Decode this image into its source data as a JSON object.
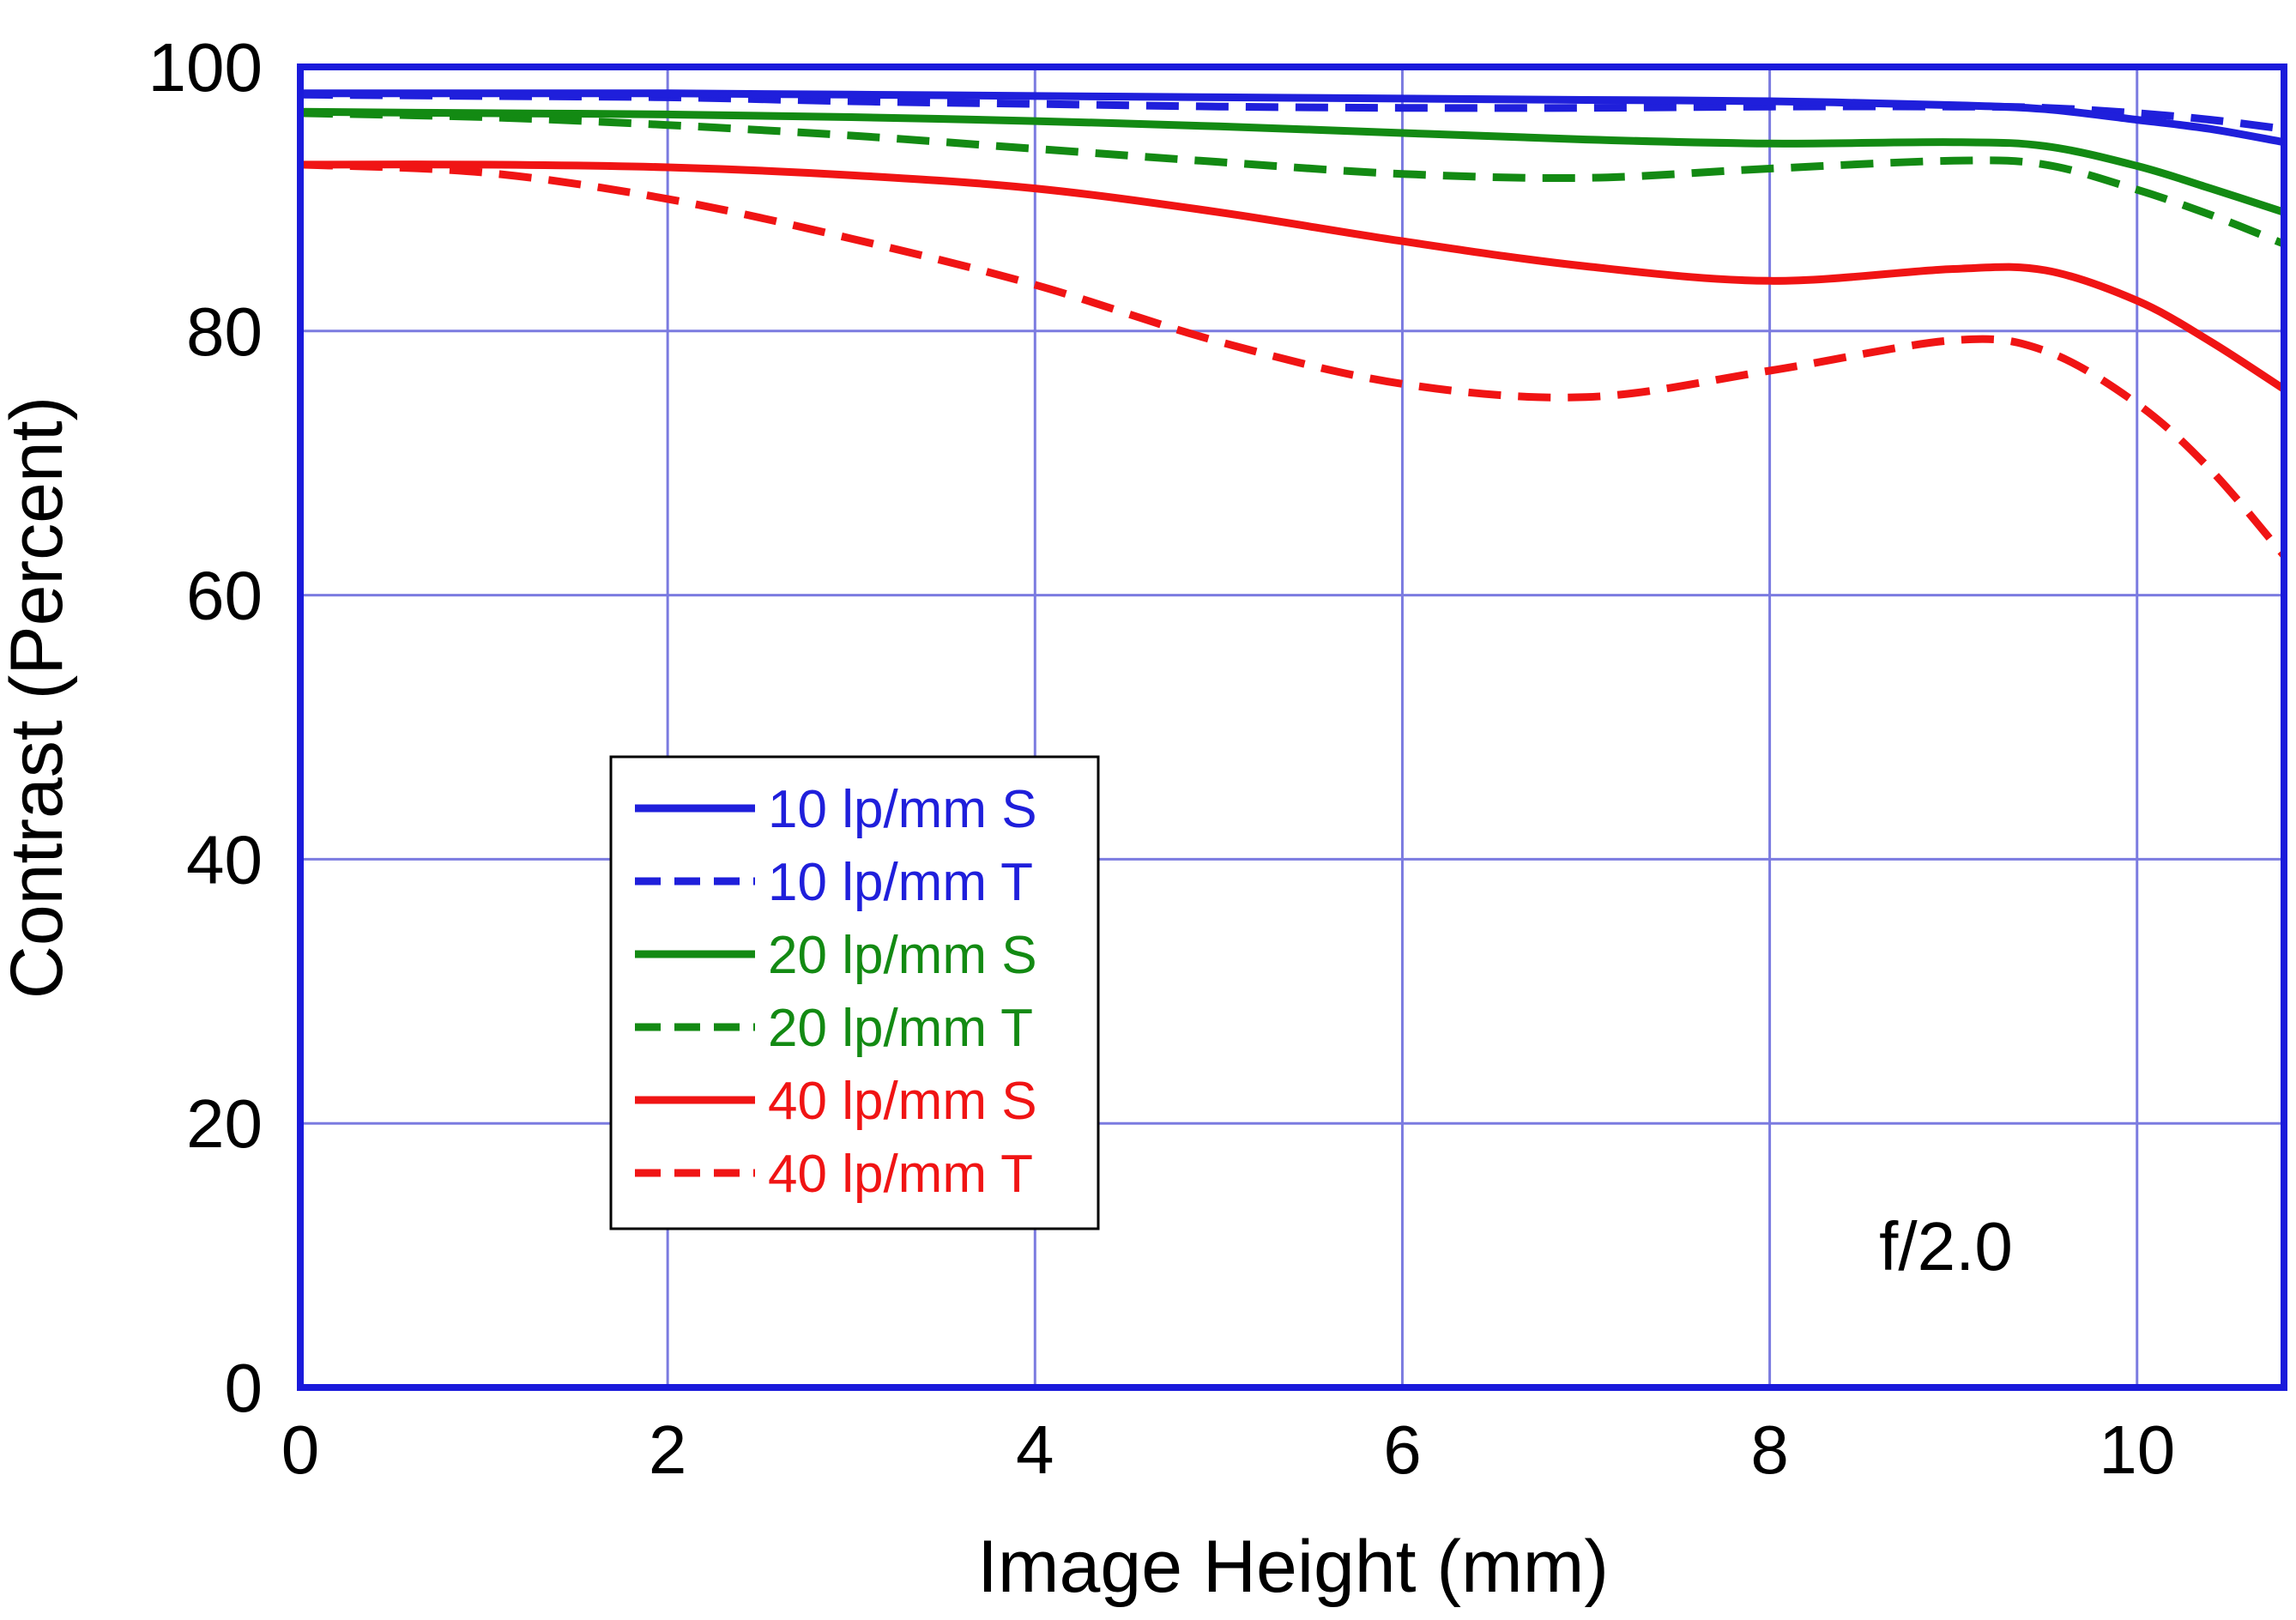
{
  "chart_data": {
    "type": "line",
    "xlabel": "Image Height (mm)",
    "ylabel": "Contrast (Percent)",
    "xlim": [
      0,
      10.8
    ],
    "ylim": [
      0,
      100
    ],
    "x_ticks": [
      0,
      2,
      4,
      6,
      8,
      10
    ],
    "y_ticks": [
      0,
      20,
      40,
      60,
      80,
      100
    ],
    "grid": true,
    "legend_position": "center-left",
    "annotation": "f/2.0",
    "colors": {
      "frame": "#1a1adb",
      "grid": "#7b7be0"
    },
    "series": [
      {
        "name": "10 lp/mm S",
        "color": "#1f1fdb",
        "dash": false,
        "x": [
          0,
          1,
          2,
          3,
          4,
          5,
          6,
          7,
          8,
          9,
          9.5,
          10,
          10.4,
          10.8
        ],
        "y": [
          98.0,
          98.0,
          98.0,
          97.9,
          97.8,
          97.7,
          97.6,
          97.5,
          97.4,
          97.1,
          96.8,
          96.0,
          95.3,
          94.3
        ]
      },
      {
        "name": "10 lp/mm T",
        "color": "#1f1fdb",
        "dash": true,
        "x": [
          0,
          1,
          2,
          3,
          4,
          5,
          6,
          7,
          8,
          9,
          9.5,
          10,
          10.4,
          10.8
        ],
        "y": [
          97.9,
          97.8,
          97.7,
          97.4,
          97.2,
          97.0,
          96.9,
          96.9,
          97.0,
          97.0,
          96.9,
          96.5,
          96.0,
          95.3
        ]
      },
      {
        "name": "20 lp/mm S",
        "color": "#138a13",
        "dash": false,
        "x": [
          0,
          1,
          2,
          3,
          4,
          5,
          6,
          7,
          8,
          9,
          9.5,
          10,
          10.4,
          10.8
        ],
        "y": [
          96.6,
          96.5,
          96.4,
          96.2,
          95.9,
          95.5,
          95.0,
          94.5,
          94.2,
          94.3,
          94.0,
          92.5,
          90.8,
          89.0
        ]
      },
      {
        "name": "20 lp/mm T",
        "color": "#138a13",
        "dash": true,
        "x": [
          0,
          1,
          2,
          3,
          4,
          5,
          6,
          7,
          8,
          9,
          9.5,
          10,
          10.4,
          10.8
        ],
        "y": [
          96.5,
          96.2,
          95.6,
          94.8,
          93.8,
          92.8,
          91.9,
          91.6,
          92.3,
          92.9,
          92.6,
          90.7,
          88.8,
          86.6
        ]
      },
      {
        "name": "40 lp/mm S",
        "color": "#f01414",
        "dash": false,
        "x": [
          0,
          1,
          2,
          3,
          4,
          5,
          6,
          7,
          8,
          9,
          9.5,
          10,
          10.4,
          10.8
        ],
        "y": [
          92.6,
          92.6,
          92.4,
          91.8,
          90.8,
          89.0,
          86.8,
          84.9,
          83.8,
          84.7,
          84.6,
          82.3,
          79.2,
          75.6
        ]
      },
      {
        "name": "40 lp/mm T",
        "color": "#f01414",
        "dash": true,
        "x": [
          0,
          1,
          2,
          3,
          4,
          5,
          6,
          7,
          8,
          9,
          9.5,
          10,
          10.4,
          10.8
        ],
        "y": [
          92.6,
          92.0,
          90.0,
          87.0,
          83.5,
          79.2,
          76.0,
          75.0,
          77.0,
          79.3,
          78.5,
          74.5,
          69.5,
          63.0
        ]
      }
    ]
  }
}
